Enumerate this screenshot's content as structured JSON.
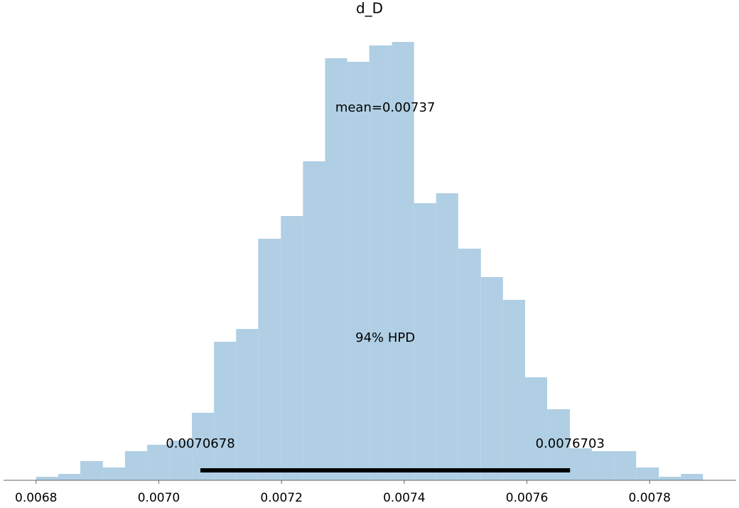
{
  "chart_data": {
    "type": "histogram",
    "title": "d_D",
    "bins": [
      0.0068,
      0.006836,
      0.006872,
      0.006909,
      0.006945,
      0.006981,
      0.007017,
      0.007054,
      0.00709,
      0.007126,
      0.007162,
      0.007199,
      0.007235,
      0.007271,
      0.007307,
      0.007343,
      0.00738,
      0.007416,
      0.007452,
      0.007488,
      0.007525,
      0.007561,
      0.007597,
      0.007633,
      0.00767,
      0.007706,
      0.007742,
      0.007778,
      0.007815,
      0.007851,
      0.007887
    ],
    "values": [
      5,
      9,
      27,
      18,
      41,
      50,
      56,
      95,
      195,
      213,
      340,
      372,
      449,
      594,
      589,
      612,
      617,
      390,
      404,
      326,
      286,
      254,
      145,
      100,
      45,
      41,
      41,
      18,
      5,
      9
    ],
    "color": "#b0cfe4",
    "xlim": [
      0.006747,
      0.007941
    ],
    "xticks": [
      0.0068,
      {
        "value": 0.007,
        "label": "0.0070"
      },
      0.0072,
      0.0074,
      0.0076,
      0.0078
    ],
    "ylim": [
      0,
      645
    ],
    "mean_annotation": "mean=0.00737",
    "hpd_annotation": "94% HPD",
    "hpd": [
      0.0070678,
      0.0076703
    ]
  }
}
